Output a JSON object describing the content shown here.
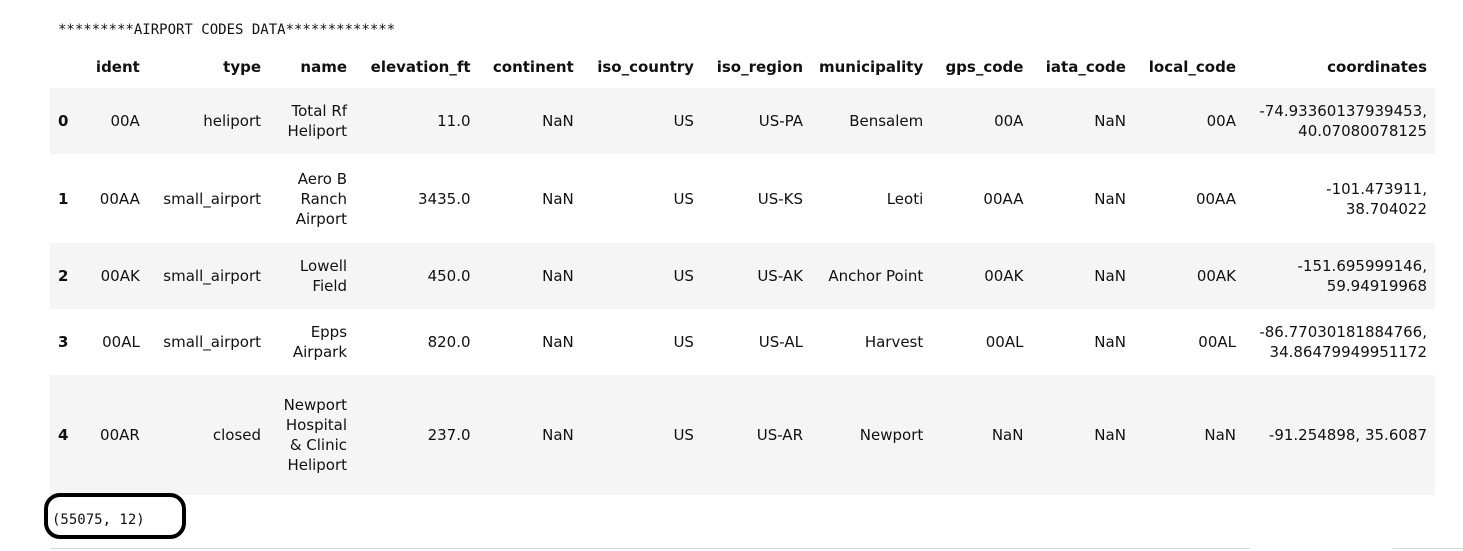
{
  "banner": "*********AIRPORT CODES DATA*************",
  "table": {
    "columns": [
      "ident",
      "type",
      "name",
      "elevation_ft",
      "continent",
      "iso_country",
      "iso_region",
      "municipality",
      "gps_code",
      "iata_code",
      "local_code",
      "coordinates"
    ],
    "rows": [
      {
        "index": "0",
        "ident": "00A",
        "type": "heliport",
        "name": "Total Rf Heliport",
        "elevation_ft": "11.0",
        "continent": "NaN",
        "iso_country": "US",
        "iso_region": "US-PA",
        "municipality": "Bensalem",
        "gps_code": "00A",
        "iata_code": "NaN",
        "local_code": "00A",
        "coordinates": "-74.93360137939453, 40.07080078125"
      },
      {
        "index": "1",
        "ident": "00AA",
        "type": "small_airport",
        "name": "Aero B Ranch Airport",
        "elevation_ft": "3435.0",
        "continent": "NaN",
        "iso_country": "US",
        "iso_region": "US-KS",
        "municipality": "Leoti",
        "gps_code": "00AA",
        "iata_code": "NaN",
        "local_code": "00AA",
        "coordinates": "-101.473911, 38.704022"
      },
      {
        "index": "2",
        "ident": "00AK",
        "type": "small_airport",
        "name": "Lowell Field",
        "elevation_ft": "450.0",
        "continent": "NaN",
        "iso_country": "US",
        "iso_region": "US-AK",
        "municipality": "Anchor Point",
        "gps_code": "00AK",
        "iata_code": "NaN",
        "local_code": "00AK",
        "coordinates": "-151.695999146, 59.94919968"
      },
      {
        "index": "3",
        "ident": "00AL",
        "type": "small_airport",
        "name": "Epps Airpark",
        "elevation_ft": "820.0",
        "continent": "NaN",
        "iso_country": "US",
        "iso_region": "US-AL",
        "municipality": "Harvest",
        "gps_code": "00AL",
        "iata_code": "NaN",
        "local_code": "00AL",
        "coordinates": "-86.77030181884766, 34.86479949951172"
      },
      {
        "index": "4",
        "ident": "00AR",
        "type": "closed",
        "name": "Newport Hospital & Clinic Heliport",
        "elevation_ft": "237.0",
        "continent": "NaN",
        "iso_country": "US",
        "iso_region": "US-AR",
        "municipality": "Newport",
        "gps_code": "NaN",
        "iata_code": "NaN",
        "local_code": "NaN",
        "coordinates": "-91.254898, 35.6087"
      }
    ]
  },
  "shape_output": "(55075, 12)"
}
